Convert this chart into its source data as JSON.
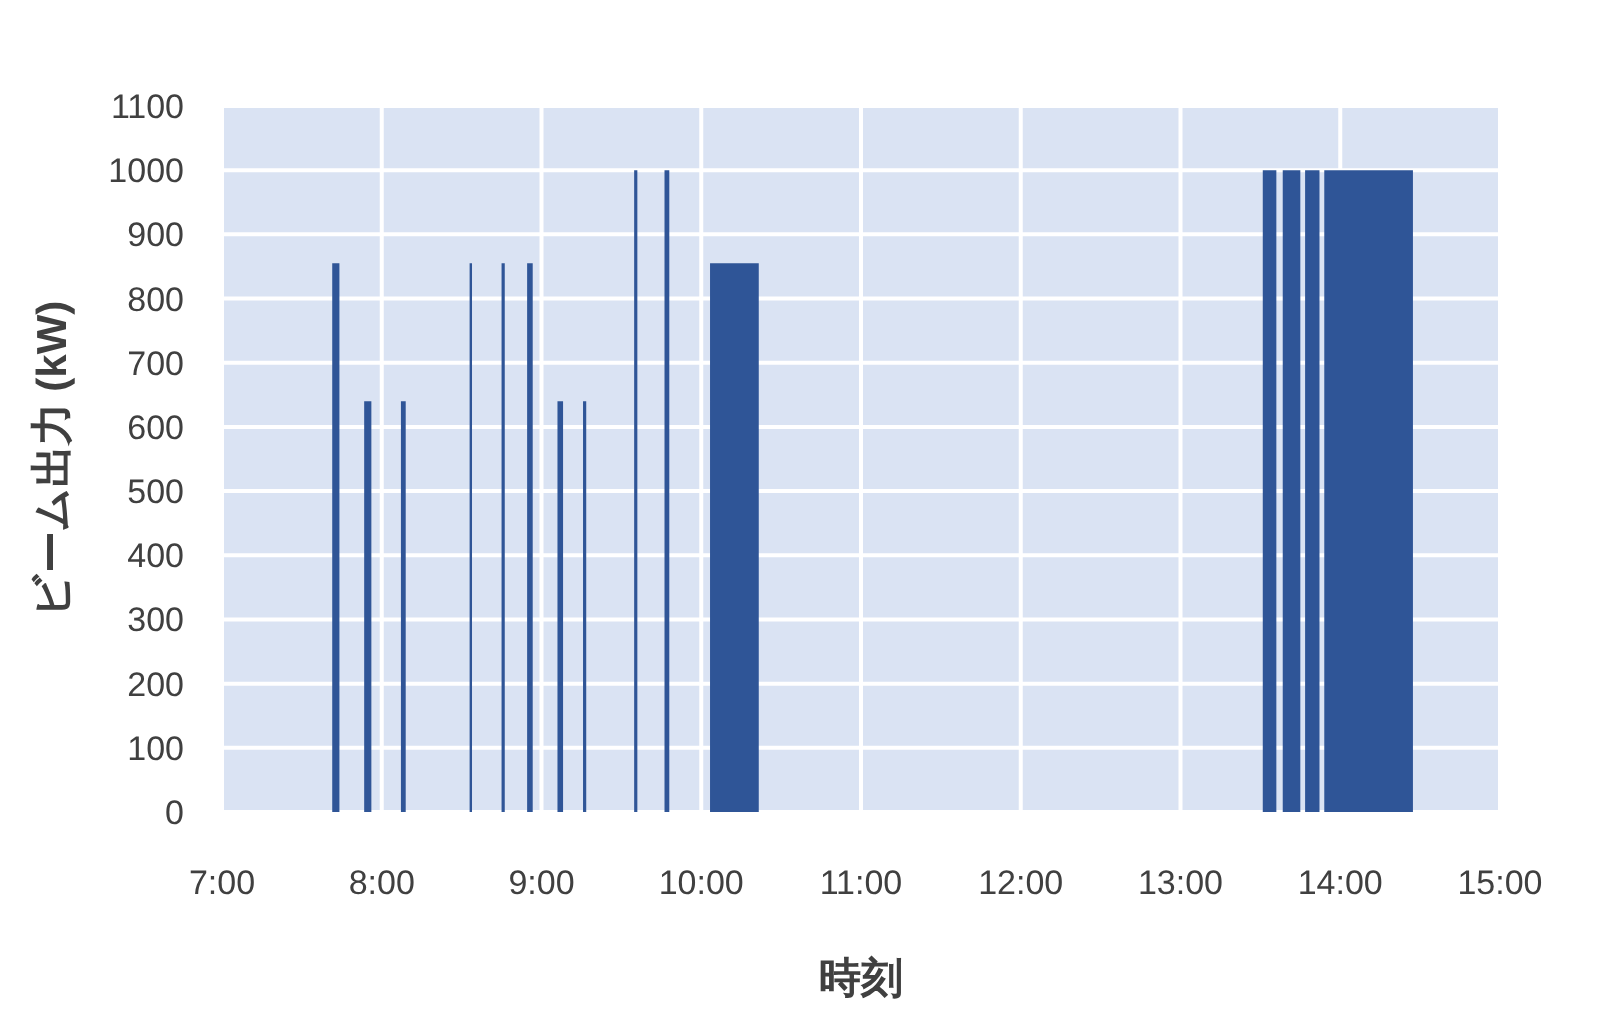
{
  "chart_data": {
    "type": "area",
    "xlabel": "時刻",
    "ylabel": "ビーム出力 (kW)",
    "grid": true,
    "x": [
      7.69,
      7.69,
      7.735,
      7.735,
      7.89,
      7.89,
      7.935,
      7.935,
      8.12,
      8.12,
      8.15,
      8.15,
      8.55,
      8.55,
      8.565,
      8.565,
      8.75,
      8.75,
      8.77,
      8.77,
      8.91,
      8.91,
      8.945,
      8.945,
      9.1,
      9.1,
      9.135,
      9.135,
      9.26,
      9.26,
      9.28,
      9.28,
      9.58,
      9.58,
      9.6,
      9.6,
      9.77,
      9.77,
      9.8,
      9.8,
      10.055,
      10.055,
      10.36,
      10.36,
      13.515,
      13.515,
      13.6,
      13.6,
      13.64,
      13.64,
      13.75,
      13.75,
      13.78,
      13.78,
      13.87,
      13.87,
      13.9,
      13.9,
      14.455,
      14.455
    ],
    "series": [
      {
        "color": "#2f5597",
        "values": [
          0,
          855,
          855,
          0,
          0,
          640,
          640,
          0,
          0,
          640,
          640,
          0,
          0,
          855,
          855,
          0,
          0,
          855,
          855,
          0,
          0,
          855,
          855,
          0,
          0,
          640,
          640,
          0,
          0,
          640,
          640,
          0,
          0,
          1000,
          1000,
          0,
          0,
          1000,
          1000,
          0,
          0,
          855,
          855,
          0,
          0,
          1000,
          1000,
          0,
          0,
          1000,
          1000,
          0,
          0,
          1000,
          1000,
          0,
          0,
          1000,
          1000,
          0
        ]
      }
    ],
    "xlim": [
      7,
      15
    ],
    "xticks": [
      {
        "value": 7,
        "label": "7:00"
      },
      {
        "value": 8,
        "label": "8:00"
      },
      {
        "value": 9,
        "label": "9:00"
      },
      {
        "value": 10,
        "label": "10:00"
      },
      {
        "value": 11,
        "label": "11:00"
      },
      {
        "value": 12,
        "label": "12:00"
      },
      {
        "value": 13,
        "label": "13:00"
      },
      {
        "value": 14,
        "label": "14:00"
      },
      {
        "value": 15,
        "label": "15:00"
      }
    ],
    "ylim": [
      0,
      1100
    ],
    "yticks": [
      0,
      100,
      200,
      300,
      400,
      500,
      600,
      700,
      800,
      900,
      1000,
      1100
    ]
  }
}
